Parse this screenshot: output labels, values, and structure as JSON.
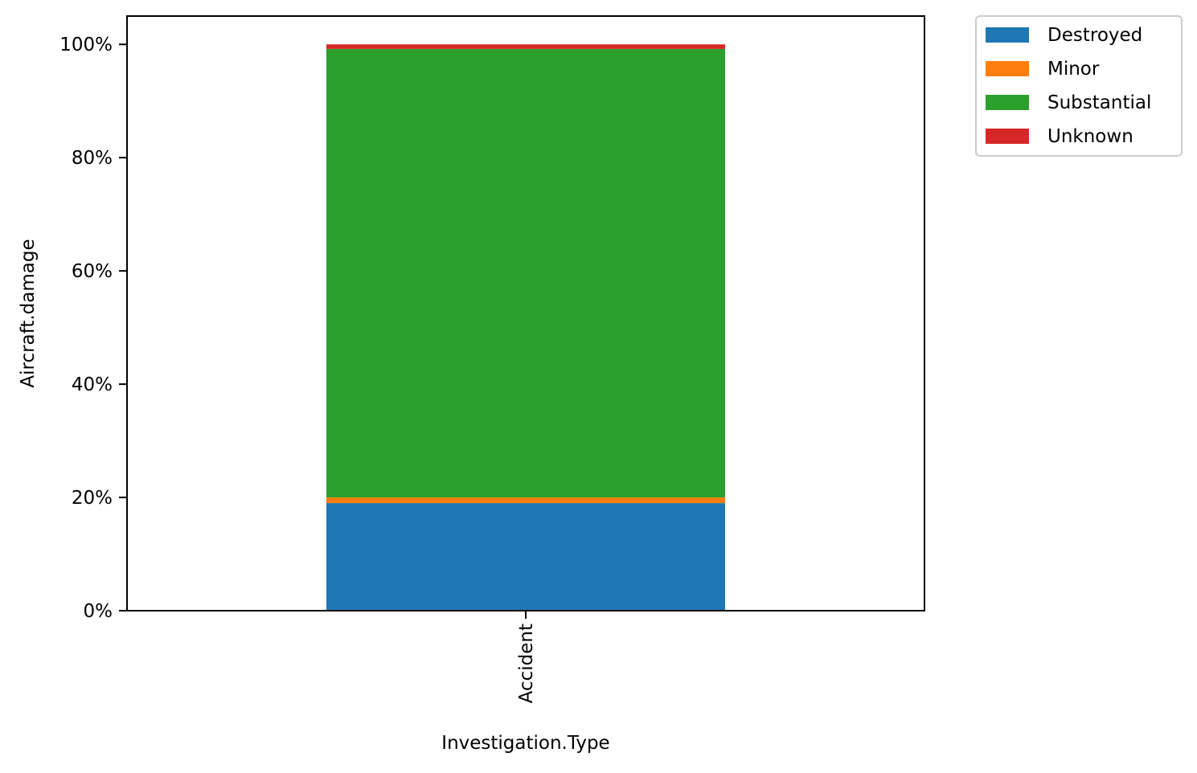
{
  "chart_data": {
    "type": "bar",
    "stacked": true,
    "categories": [
      "Accident"
    ],
    "series": [
      {
        "name": "Destroyed",
        "values": [
          19.0
        ],
        "color": "#1f77b4"
      },
      {
        "name": "Minor",
        "values": [
          1.0
        ],
        "color": "#ff7f0e"
      },
      {
        "name": "Substantial",
        "values": [
          79.2
        ],
        "color": "#2ca02c"
      },
      {
        "name": "Unknown",
        "values": [
          0.8
        ],
        "color": "#d62728"
      }
    ],
    "xlabel": "Investigation.Type",
    "ylabel": "Aircraft.damage",
    "ylim": [
      0,
      105
    ],
    "yticks": [
      0,
      20,
      40,
      60,
      80,
      100
    ],
    "ytick_labels": [
      "0%",
      "20%",
      "40%",
      "60%",
      "80%",
      "100%"
    ],
    "xtick_rotation": "vertical",
    "grid": false,
    "legend_position": "outside-top-right"
  }
}
